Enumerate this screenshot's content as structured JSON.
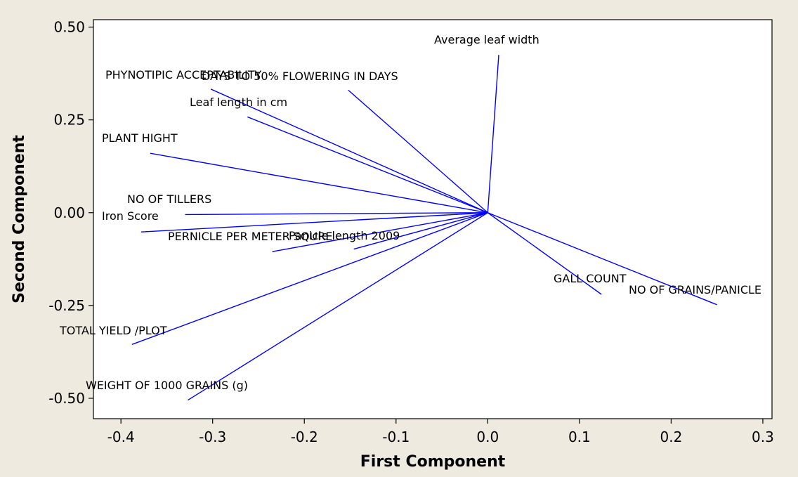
{
  "chart_data": {
    "type": "loading-plot",
    "xlabel": "First Component",
    "ylabel": "Second Component",
    "xlim": [
      -0.43,
      0.31
    ],
    "ylim": [
      -0.555,
      0.52
    ],
    "x_ticks": [
      -0.4,
      -0.3,
      -0.2,
      -0.1,
      0.0,
      0.1,
      0.2,
      0.3
    ],
    "x_tick_labels": [
      "-0.4",
      "-0.3",
      "-0.2",
      "-0.1",
      "0.0",
      "0.1",
      "0.2",
      "0.3"
    ],
    "y_ticks": [
      0.5,
      0.25,
      0.0,
      -0.25,
      -0.5
    ],
    "y_tick_labels": [
      "0.50",
      "0.25",
      "0.00",
      "-0.25",
      "-0.50"
    ],
    "grid": false,
    "line_color": "#0000ff",
    "plot_background": "#ffffff",
    "page_background": "#efeae0",
    "vectors": [
      {
        "label": "Average leaf width",
        "x": 0.012,
        "y": 0.425
      },
      {
        "label": "PHYNOTIPIC ACCEPTABILITY",
        "x": -0.302,
        "y": 0.333
      },
      {
        "label": "DAYS TO 50% FLOWERING  IN DAYS",
        "x": -0.152,
        "y": 0.33
      },
      {
        "label": "Leaf length in cm",
        "x": -0.262,
        "y": 0.258
      },
      {
        "label": "PLANT HIGHT",
        "x": -0.368,
        "y": 0.16
      },
      {
        "label": "NO OF TILLERS",
        "x": -0.33,
        "y": -0.005
      },
      {
        "label": "Iron Score",
        "x": -0.378,
        "y": -0.052
      },
      {
        "label": "PERNICLE PER METER SQURE",
        "x": -0.235,
        "y": -0.105
      },
      {
        "label": "Panicle length 2009",
        "x": -0.146,
        "y": -0.098
      },
      {
        "label": "GALL COUNT",
        "x": 0.124,
        "y": -0.22
      },
      {
        "label": "NO OF GRAINS/PANICLE",
        "x": 0.25,
        "y": -0.248
      },
      {
        "label": "TOTAL YIELD /PLOT",
        "x": -0.388,
        "y": -0.355
      },
      {
        "label": "WEIGHT OF 1000 GRAINS (g)",
        "x": -0.327,
        "y": -0.505
      }
    ]
  }
}
